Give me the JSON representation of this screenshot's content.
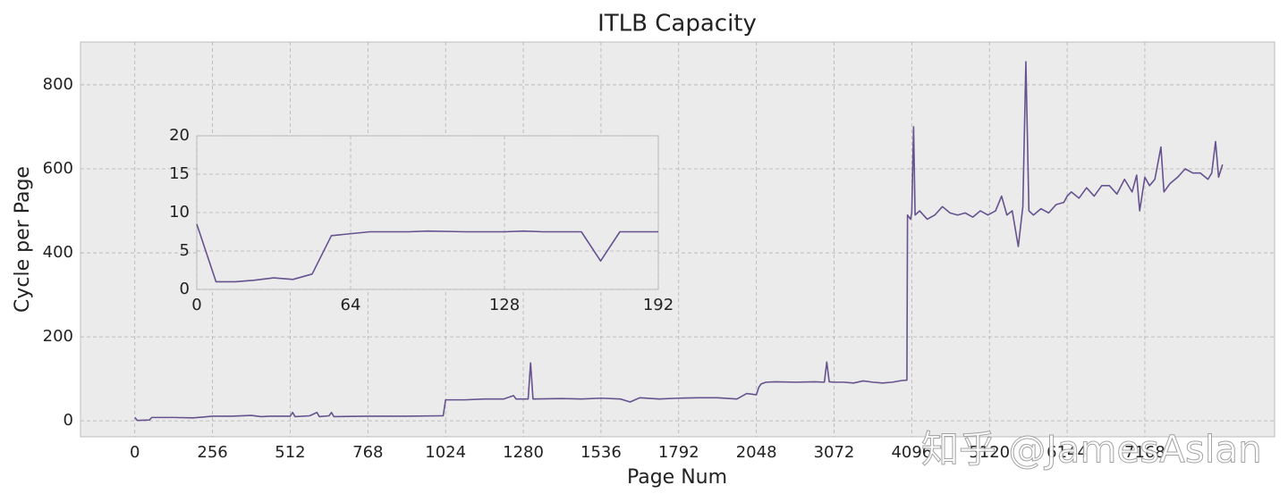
{
  "chart_data": [
    {
      "type": "line",
      "title": "ITLB Capacity",
      "xlabel": "Page Num",
      "ylabel": "Cycle per Page",
      "color": "#65528f",
      "grid": true,
      "xlim": [
        -179,
        8878
      ],
      "ylim": [
        -38,
        902
      ],
      "xticks": [
        0,
        256,
        512,
        768,
        1024,
        1280,
        1536,
        1792,
        2048,
        3072,
        4096,
        5120,
        6144,
        7168
      ],
      "yticks": [
        0,
        200,
        400,
        600,
        800
      ],
      "x": [
        0,
        8,
        48,
        56,
        96,
        128,
        192,
        224,
        256,
        320,
        384,
        416,
        448,
        512,
        520,
        528,
        576,
        600,
        608,
        640,
        648,
        656,
        768,
        896,
        1008,
        1016,
        1024,
        1088,
        1152,
        1216,
        1248,
        1256,
        1296,
        1304,
        1312,
        1408,
        1472,
        1536,
        1600,
        1632,
        1664,
        1728,
        1792,
        1856,
        1920,
        1984,
        2016,
        2048,
        2080,
        2112,
        2176,
        2304,
        2560,
        2816,
        2944,
        2976,
        3008,
        3072,
        3200,
        3328,
        3456,
        3584,
        3712,
        3840,
        3968,
        4032,
        4040,
        4080,
        4096,
        4120,
        4140,
        4200,
        4300,
        4400,
        4500,
        4600,
        4700,
        4800,
        4900,
        5000,
        5100,
        5200,
        5280,
        5350,
        5420,
        5500,
        5560,
        5600,
        5640,
        5700,
        5800,
        5900,
        6000,
        6100,
        6144,
        6200,
        6300,
        6400,
        6500,
        6600,
        6700,
        6800,
        6900,
        7000,
        7060,
        7100,
        7168,
        7230,
        7300,
        7380,
        7420,
        7500,
        7600,
        7700,
        7800,
        7900,
        8000,
        8050,
        8100,
        8140,
        8192
      ],
      "values": [
        8,
        1,
        2,
        8,
        8,
        8,
        7,
        9,
        11,
        11,
        13,
        10,
        11,
        11,
        20,
        10,
        12,
        20,
        10,
        12,
        20,
        10,
        11,
        11,
        12,
        12,
        50,
        50,
        52,
        52,
        60,
        52,
        52,
        138,
        52,
        53,
        52,
        54,
        52,
        45,
        55,
        52,
        54,
        55,
        55,
        52,
        65,
        62,
        80,
        88,
        92,
        93,
        92,
        93,
        92,
        140,
        93,
        92,
        92,
        90,
        95,
        92,
        90,
        92,
        96,
        97,
        490,
        480,
        495,
        700,
        490,
        500,
        480,
        490,
        510,
        495,
        490,
        495,
        485,
        500,
        490,
        500,
        535,
        490,
        500,
        415,
        510,
        855,
        500,
        490,
        505,
        495,
        515,
        520,
        535,
        545,
        530,
        555,
        535,
        560,
        560,
        540,
        575,
        545,
        585,
        500,
        580,
        560,
        575,
        652,
        545,
        565,
        580,
        600,
        590,
        590,
        575,
        590,
        665,
        580,
        610
      ]
    },
    {
      "type": "line",
      "color": "#65528f",
      "grid": true,
      "xlim": [
        0,
        192
      ],
      "ylim": [
        0,
        20
      ],
      "xticks": [
        0,
        64,
        128,
        192
      ],
      "yticks": [
        0,
        5,
        10,
        15,
        20
      ],
      "x": [
        0,
        8,
        16,
        24,
        32,
        40,
        48,
        56,
        72,
        80,
        88,
        96,
        112,
        128,
        136,
        144,
        152,
        160,
        168,
        176,
        192
      ],
      "values": [
        8.5,
        1,
        1,
        1.2,
        1.5,
        1.3,
        2,
        7,
        7.5,
        7.5,
        7.5,
        7.6,
        7.5,
        7.5,
        7.6,
        7.5,
        7.5,
        7.5,
        3.7,
        7.5,
        7.5
      ]
    }
  ],
  "watermark": "知乎 @JamesAslan"
}
